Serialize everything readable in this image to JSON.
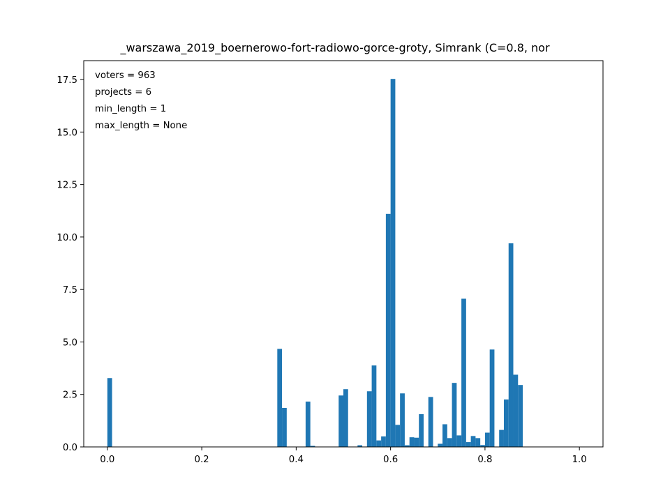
{
  "chart_data": {
    "type": "bar",
    "title": "_warszawa_2019_boernerowo-fort-radiowo-gorce-groty, Simrank (C=0.8, nor",
    "xlabel": "",
    "ylabel": "",
    "xlim": [
      -0.05,
      1.05
    ],
    "ylim": [
      0,
      18.4
    ],
    "bin_width": 0.01,
    "color": "#1f77b4",
    "x_ticks": [
      0.0,
      0.2,
      0.4,
      0.6,
      0.8,
      1.0
    ],
    "x_tick_labels": [
      "0.0",
      "0.2",
      "0.4",
      "0.6",
      "0.8",
      "1.0"
    ],
    "y_ticks": [
      0.0,
      2.5,
      5.0,
      7.5,
      10.0,
      12.5,
      15.0,
      17.5
    ],
    "y_tick_labels": [
      "0.0",
      "2.5",
      "5.0",
      "7.5",
      "10.0",
      "12.5",
      "15.0",
      "17.5"
    ],
    "annotations": [
      "voters = 963",
      "projects = 6",
      "min_length = 1",
      "max_length = None"
    ],
    "bins": [
      {
        "x": 0.0,
        "value": 3.28
      },
      {
        "x": 0.36,
        "value": 4.67
      },
      {
        "x": 0.37,
        "value": 1.86
      },
      {
        "x": 0.42,
        "value": 2.16
      },
      {
        "x": 0.43,
        "value": 0.05
      },
      {
        "x": 0.49,
        "value": 2.45
      },
      {
        "x": 0.5,
        "value": 2.75
      },
      {
        "x": 0.53,
        "value": 0.08
      },
      {
        "x": 0.55,
        "value": 2.65
      },
      {
        "x": 0.56,
        "value": 3.88
      },
      {
        "x": 0.57,
        "value": 0.31
      },
      {
        "x": 0.58,
        "value": 0.5
      },
      {
        "x": 0.59,
        "value": 11.1
      },
      {
        "x": 0.6,
        "value": 17.53
      },
      {
        "x": 0.61,
        "value": 1.05
      },
      {
        "x": 0.62,
        "value": 2.55
      },
      {
        "x": 0.63,
        "value": 0.08
      },
      {
        "x": 0.64,
        "value": 0.46
      },
      {
        "x": 0.65,
        "value": 0.44
      },
      {
        "x": 0.66,
        "value": 1.56
      },
      {
        "x": 0.68,
        "value": 2.38
      },
      {
        "x": 0.7,
        "value": 0.15
      },
      {
        "x": 0.71,
        "value": 1.08
      },
      {
        "x": 0.72,
        "value": 0.42
      },
      {
        "x": 0.73,
        "value": 3.05
      },
      {
        "x": 0.74,
        "value": 0.55
      },
      {
        "x": 0.75,
        "value": 7.06
      },
      {
        "x": 0.76,
        "value": 0.23
      },
      {
        "x": 0.77,
        "value": 0.52
      },
      {
        "x": 0.78,
        "value": 0.42
      },
      {
        "x": 0.79,
        "value": 0.09
      },
      {
        "x": 0.8,
        "value": 0.68
      },
      {
        "x": 0.81,
        "value": 4.64
      },
      {
        "x": 0.83,
        "value": 0.81
      },
      {
        "x": 0.84,
        "value": 2.26
      },
      {
        "x": 0.85,
        "value": 9.7
      },
      {
        "x": 0.86,
        "value": 3.44
      },
      {
        "x": 0.87,
        "value": 2.95
      }
    ]
  }
}
